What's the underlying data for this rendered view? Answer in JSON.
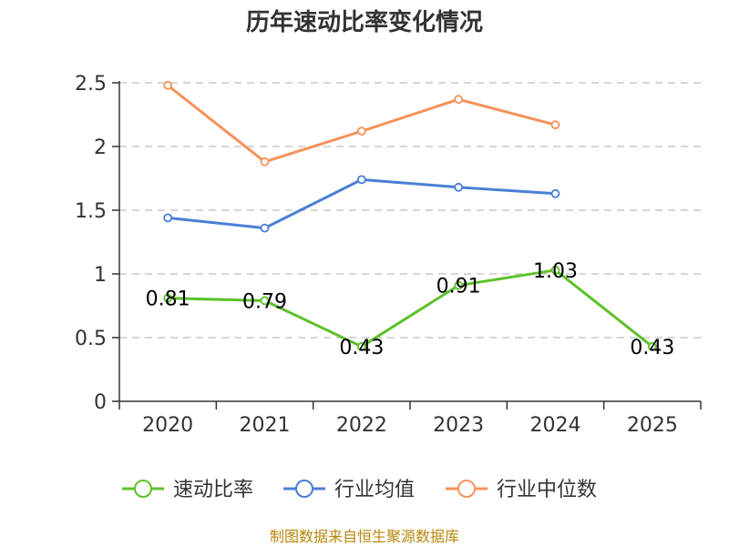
{
  "chart_data": {
    "type": "line",
    "title": "历年速动比率变化情况",
    "categories": [
      "2020",
      "2021",
      "2022",
      "2023",
      "2024",
      "2025"
    ],
    "ylim": [
      0,
      2.5
    ],
    "yticks": [
      "0",
      "0.5",
      "1",
      "1.5",
      "2",
      "2.5"
    ],
    "ytick_values": [
      0,
      0.5,
      1,
      1.5,
      2,
      2.5
    ],
    "grid": true,
    "legend_position": "bottom",
    "series": [
      {
        "name": "速动比率",
        "color": "#5cc12a",
        "values": [
          0.81,
          0.79,
          0.43,
          0.91,
          1.03,
          0.43
        ],
        "labels": [
          "0.81",
          "0.79",
          "0.43",
          "0.91",
          "1.03",
          "0.43"
        ],
        "show_labels": true
      },
      {
        "name": "行业均值",
        "color": "#4b7fd6",
        "values": [
          1.44,
          1.36,
          1.74,
          1.68,
          1.63,
          null
        ],
        "show_labels": false
      },
      {
        "name": "行业中位数",
        "color": "#f5925a",
        "values": [
          2.48,
          1.88,
          2.12,
          2.37,
          2.17,
          null
        ],
        "show_labels": false
      }
    ]
  },
  "source_text": "制图数据来自恒生聚源数据库"
}
